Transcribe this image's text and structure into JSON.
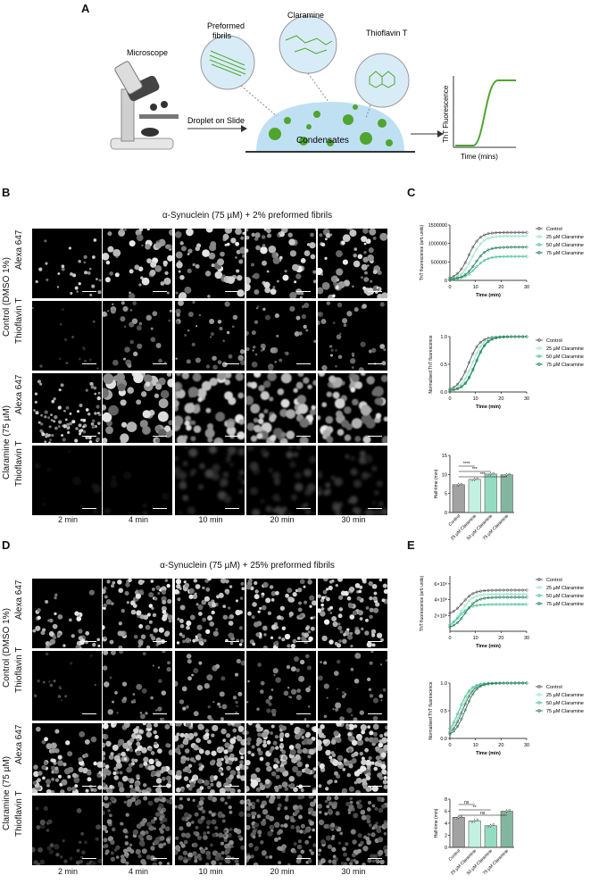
{
  "panelA": {
    "label": "A",
    "microscope": "Microscope",
    "droplet": "Droplet on Slide",
    "fibrils": [
      "Preformed",
      "fibrils"
    ],
    "claramine": "Claramine",
    "tht": "Thioflavin T",
    "condensates": "Condensates",
    "curve_ylabel": "ThT Fluorescence",
    "curve_xlabel": "Time (mins)",
    "colors": {
      "green": "#4fa52e",
      "drop": "#bfe0f3"
    }
  },
  "panelB": {
    "label": "B",
    "title": "α-Synuclein (75 µM) + 2% preformed fibrils",
    "group1": "Control (DMSO 1%)",
    "group2": "Claramine (75 µM)",
    "row1": "Alexa 647",
    "row2": "Thioflavin T",
    "row3": "Alexa 647",
    "row4": "Thioflavin T",
    "times": [
      "2 min",
      "4 min",
      "10 min",
      "20 min",
      "30 min"
    ]
  },
  "panelD": {
    "label": "D",
    "title": "α-Synuclein (75 µM) + 25% preformed fibrils",
    "group1": "Control (DMSO 1%)",
    "group2": "Claramine (75 µM)",
    "row1": "Alexa 647",
    "row2": "Thioflavin T",
    "row3": "Alexa 647",
    "row4": "Thioflavin T",
    "times": [
      "2 min",
      "4 min",
      "10 min",
      "20 min",
      "30 min"
    ]
  },
  "panelC": {
    "label": "C"
  },
  "panelE": {
    "label": "E"
  },
  "chart_data": [
    {
      "id": "C1",
      "type": "line",
      "xlabel": "Time (min)",
      "ylabel": "ThT fluorescence (arb units)",
      "xlim": [
        0,
        30
      ],
      "ylim": [
        0,
        1500000
      ],
      "xticks": [
        0,
        10,
        20,
        30
      ],
      "yticks": [
        "0",
        "500000",
        "1000000",
        "1500000"
      ],
      "legend": [
        "Control",
        "25 µM Claramine",
        "50 µM Claramine",
        "75 µM Claramine"
      ],
      "series": [
        {
          "name": "Control",
          "plateau": 1300000,
          "t_half": 7.3
        },
        {
          "name": "25 µM Claramine",
          "plateau": 1200000,
          "t_half": 8.7
        },
        {
          "name": "50 µM Claramine",
          "plateau": 650000,
          "t_half": 10.1
        },
        {
          "name": "75 µM Claramine",
          "plateau": 900000,
          "t_half": 9.9
        }
      ]
    },
    {
      "id": "C2",
      "type": "line",
      "xlabel": "Time (min)",
      "ylabel": "Normalised ThT fluorescence",
      "xlim": [
        0,
        30
      ],
      "ylim": [
        0,
        1
      ],
      "xticks": [
        0,
        10,
        20,
        30
      ],
      "yticks": [
        "0.0",
        "0.5",
        "1.0"
      ],
      "legend": [
        "Control",
        "25 µM Claramine",
        "50 µM Claramine",
        "75 µM Claramine"
      ],
      "series": [
        {
          "name": "Control",
          "plateau": 1.0,
          "t_half": 7.3
        },
        {
          "name": "25 µM Claramine",
          "plateau": 1.0,
          "t_half": 8.7
        },
        {
          "name": "50 µM Claramine",
          "plateau": 1.0,
          "t_half": 10.1
        },
        {
          "name": "75 µM Claramine",
          "plateau": 1.0,
          "t_half": 9.9
        }
      ]
    },
    {
      "id": "C3",
      "type": "bar",
      "ylabel": "Half-time (min)",
      "ylim": [
        0,
        15
      ],
      "yticks": [
        "0",
        "5",
        "10",
        "15"
      ],
      "categories": [
        "Control",
        "25 µM Claramine",
        "50 µM Claramine",
        "75 µM Claramine"
      ],
      "values": [
        7.3,
        8.7,
        10.1,
        9.9
      ],
      "sig": [
        "****",
        "***",
        "***"
      ]
    },
    {
      "id": "E1",
      "type": "line",
      "xlabel": "Time (min)",
      "ylabel": "ThT fluorescence (arb units)",
      "xlim": [
        0,
        30
      ],
      "ylim": [
        0,
        7000000
      ],
      "xticks": [
        0,
        10,
        20,
        30
      ],
      "yticks": [
        "2×10⁶",
        "4×10⁶",
        "6×10⁶"
      ],
      "legend": [
        "Control",
        "25 µM Claramine",
        "50 µM Claramine",
        "75 µM Claramine"
      ],
      "series": [
        {
          "name": "Control",
          "start": 2000000,
          "plateau": 5200000,
          "t_half": 5.0
        },
        {
          "name": "25 µM Claramine",
          "start": 300000,
          "plateau": 4700000,
          "t_half": 4.4
        },
        {
          "name": "50 µM Claramine",
          "start": 300000,
          "plateau": 3400000,
          "t_half": 3.6
        },
        {
          "name": "75 µM Claramine",
          "start": 300000,
          "plateau": 4300000,
          "t_half": 6.0
        }
      ]
    },
    {
      "id": "E2",
      "type": "line",
      "xlabel": "Time (min)",
      "ylabel": "Normalised ThT fluorescence",
      "xlim": [
        0,
        30
      ],
      "ylim": [
        0,
        1
      ],
      "xticks": [
        0,
        10,
        20,
        30
      ],
      "yticks": [
        "0.0",
        "0.5",
        "1.0"
      ],
      "legend": [
        "Control",
        "25 µM Claramine",
        "50 µM Claramine",
        "75 µM Claramine"
      ],
      "series": [
        {
          "name": "Control",
          "plateau": 1.0,
          "t_half": 5.0
        },
        {
          "name": "25 µM Claramine",
          "plateau": 1.0,
          "t_half": 4.4
        },
        {
          "name": "50 µM Claramine",
          "plateau": 1.0,
          "t_half": 3.6
        },
        {
          "name": "75 µM Claramine",
          "plateau": 1.0,
          "t_half": 6.0
        }
      ]
    },
    {
      "id": "E3",
      "type": "bar",
      "ylabel": "Half-time (min)",
      "ylim": [
        0,
        8
      ],
      "yticks": [
        "0",
        "2",
        "4",
        "6",
        "8"
      ],
      "categories": [
        "Control",
        "25 µM Claramine",
        "50 µM Claramine",
        "75 µM Claramine"
      ],
      "values": [
        5.0,
        4.4,
        3.6,
        6.0
      ],
      "sig": [
        "ns",
        "**",
        "ns"
      ]
    }
  ],
  "series_colors": [
    "#555555",
    "#8fe5c8",
    "#3cbf8e",
    "#1e7a4e"
  ]
}
